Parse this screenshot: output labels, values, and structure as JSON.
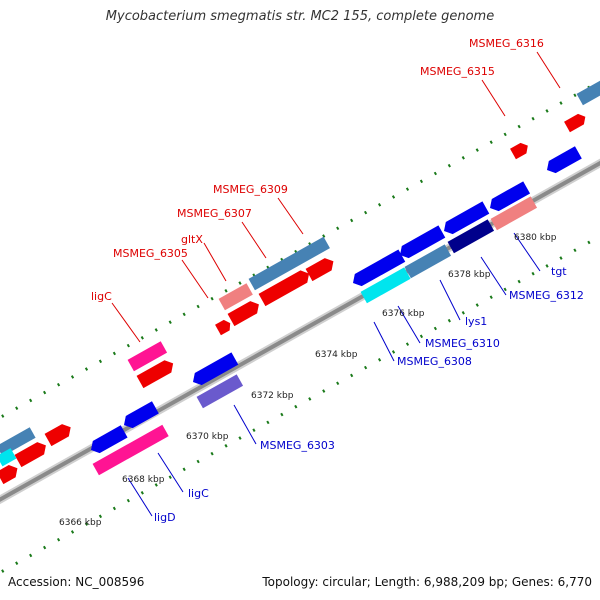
{
  "title": "Mycobacterium smegmatis str. MC2 155, complete genome",
  "footer": {
    "accession": "Accession: NC_008596",
    "stats": "Topology: circular; Length: 6,988,209 bp; Genes: 6,770"
  },
  "colors": {
    "label_forward": "#dd0000",
    "label_reverse": "#0000cc",
    "tick": "#1a7a1a",
    "leader_forward": "#dd0000",
    "leader_reverse": "#0000cc",
    "backbone": "#888888"
  },
  "scale": {
    "unit": "kbp",
    "ticks": [
      "6366 kbp",
      "6368 kbp",
      "6370 kbp",
      "6372 kbp",
      "6374 kbp",
      "6376 kbp",
      "6378 kbp",
      "6380 kbp"
    ]
  },
  "gene_labels": [
    {
      "name": "MSMEG_6316",
      "strand": "forward"
    },
    {
      "name": "MSMEG_6315",
      "strand": "forward"
    },
    {
      "name": "MSMEG_6309",
      "strand": "forward"
    },
    {
      "name": "MSMEG_6307",
      "strand": "forward"
    },
    {
      "name": "gltX",
      "strand": "forward"
    },
    {
      "name": "MSMEG_6305",
      "strand": "forward"
    },
    {
      "name": "ligC",
      "strand": "forward"
    },
    {
      "name": "tgt",
      "strand": "reverse"
    },
    {
      "name": "MSMEG_6312",
      "strand": "reverse"
    },
    {
      "name": "lys1",
      "strand": "reverse"
    },
    {
      "name": "MSMEG_6310",
      "strand": "reverse"
    },
    {
      "name": "MSMEG_6308",
      "strand": "reverse"
    },
    {
      "name": "MSMEG_6303",
      "strand": "reverse"
    },
    {
      "name": "ligC",
      "strand": "reverse"
    },
    {
      "name": "ligD",
      "strand": "reverse"
    }
  ]
}
